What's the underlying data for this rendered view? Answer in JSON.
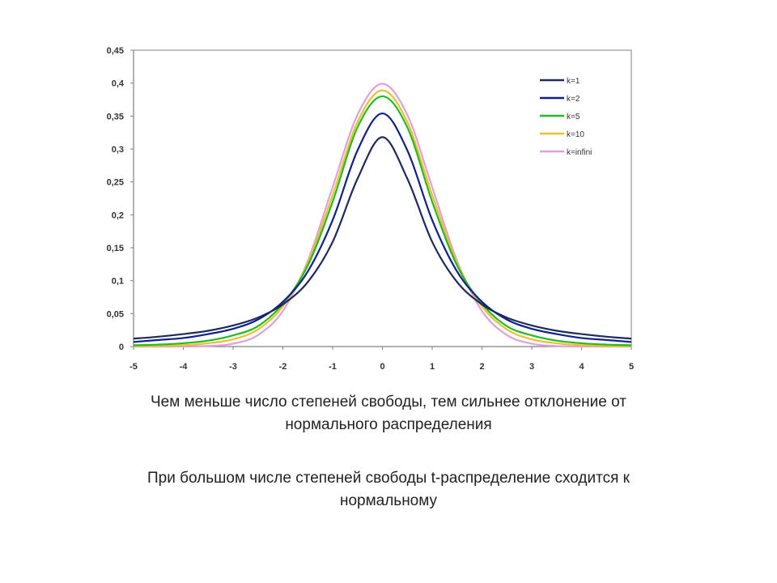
{
  "chart_data": {
    "type": "line",
    "title": "",
    "xlabel": "",
    "ylabel": "",
    "xlim": [
      -5,
      5
    ],
    "ylim": [
      0,
      0.45
    ],
    "x_ticks": [
      "-5",
      "-4",
      "-3",
      "-2",
      "-1",
      "0",
      "1",
      "2",
      "3",
      "4",
      "5"
    ],
    "y_ticks": [
      "0",
      "0,05",
      "0,1",
      "0,15",
      "0,2",
      "0,25",
      "0,3",
      "0,35",
      "0,4",
      "0,45"
    ],
    "grid": false,
    "legend_position": "top-right",
    "x": [
      -5,
      -4.5,
      -4,
      -3.5,
      -3,
      -2.5,
      -2,
      -1.5,
      -1,
      -0.5,
      0,
      0.5,
      1,
      1.5,
      2,
      2.5,
      3,
      3.5,
      4,
      4.5,
      5
    ],
    "series": [
      {
        "name": "k=1",
        "color": "#1f2a5c",
        "values": [
          0.012,
          0.015,
          0.019,
          0.024,
          0.032,
          0.044,
          0.064,
          0.098,
          0.159,
          0.255,
          0.318,
          0.255,
          0.159,
          0.098,
          0.064,
          0.044,
          0.032,
          0.024,
          0.019,
          0.015,
          0.012
        ]
      },
      {
        "name": "k=2",
        "color": "#10208c",
        "values": [
          0.007,
          0.01,
          0.013,
          0.019,
          0.027,
          0.041,
          0.068,
          0.114,
          0.192,
          0.298,
          0.354,
          0.298,
          0.192,
          0.114,
          0.068,
          0.041,
          0.027,
          0.019,
          0.013,
          0.01,
          0.007
        ]
      },
      {
        "name": "k=5",
        "color": "#22bb22",
        "values": [
          0.002,
          0.003,
          0.005,
          0.009,
          0.017,
          0.031,
          0.065,
          0.123,
          0.22,
          0.333,
          0.38,
          0.333,
          0.22,
          0.123,
          0.065,
          0.031,
          0.017,
          0.009,
          0.005,
          0.003,
          0.002
        ]
      },
      {
        "name": "k=10",
        "color": "#e8c030",
        "values": [
          0.0004,
          0.001,
          0.002,
          0.005,
          0.011,
          0.026,
          0.061,
          0.127,
          0.23,
          0.341,
          0.389,
          0.341,
          0.23,
          0.127,
          0.061,
          0.026,
          0.011,
          0.005,
          0.002,
          0.001,
          0.0004
        ]
      },
      {
        "name": "k=infini",
        "color": "#e0a0d8",
        "values": [
          1.5e-06,
          1.6e-05,
          0.000134,
          0.00087,
          0.0044,
          0.0175,
          0.054,
          0.13,
          0.242,
          0.352,
          0.399,
          0.352,
          0.242,
          0.13,
          0.054,
          0.0175,
          0.0044,
          0.00087,
          0.000134,
          1.6e-05,
          1.5e-06
        ]
      }
    ]
  },
  "captions": {
    "line1a": "Чем меньше число степеней свободы, тем сильнее отклонение от",
    "line1b": "нормального распределения",
    "line2a": "При большом числе степеней свободы t-распределение сходится к",
    "line2b": "нормальному"
  }
}
